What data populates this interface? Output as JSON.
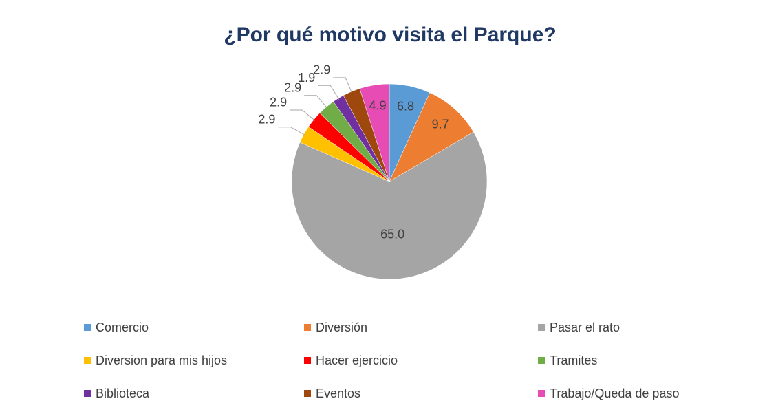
{
  "chart_data": {
    "type": "pie",
    "title": "¿Por qué motivo visita el Parque?",
    "categories": [
      "Comercio",
      "Diversión",
      "Pasar el rato",
      "Diversion para mis hijos",
      "Hacer ejercicio",
      "Tramites",
      "Biblioteca",
      "Eventos",
      "Trabajo/Queda de paso"
    ],
    "values": [
      6.8,
      9.7,
      65.0,
      2.9,
      2.9,
      2.9,
      1.9,
      2.9,
      4.9
    ],
    "value_labels": [
      "6.8",
      "9.7",
      "65.0",
      "2.9",
      "2.9",
      "2.9",
      "1.9",
      "2.9",
      "4.9"
    ],
    "colors": [
      "#5b9bd5",
      "#ed7d31",
      "#a5a5a5",
      "#ffc000",
      "#ff0000",
      "#70ad47",
      "#7030a0",
      "#9e480e",
      "#e64cb4"
    ]
  }
}
